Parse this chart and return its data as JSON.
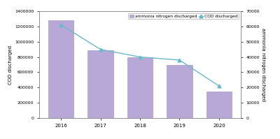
{
  "years": [
    2016,
    2017,
    2018,
    2019,
    2020
  ],
  "cod_values": [
    1280000,
    890000,
    800000,
    700000,
    350000
  ],
  "ammonia_values": [
    61000,
    45000,
    40000,
    38000,
    21000
  ],
  "bar_color": "#b8a8d8",
  "bar_edgecolor": "#9e8ec0",
  "line_color": "#6ab8cc",
  "line_marker": "^",
  "left_ylabel": "COD discharged",
  "right_ylabel": "ammonia nitrogen discharged",
  "left_ylim": [
    0,
    1400000
  ],
  "right_ylim": [
    0,
    70000
  ],
  "left_yticks": [
    0,
    200000,
    400000,
    600000,
    800000,
    1000000,
    1200000,
    1400000
  ],
  "right_yticks": [
    0,
    10000,
    20000,
    30000,
    40000,
    50000,
    60000,
    70000
  ],
  "legend_bar_label": "ammonia nitrogen discharged",
  "legend_line_label": "COD discharged",
  "background_color": "#ffffff"
}
